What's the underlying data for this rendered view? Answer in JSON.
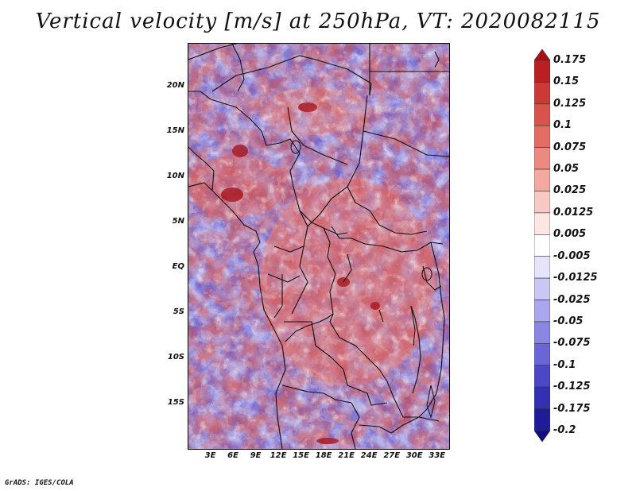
{
  "title": "Vertical velocity [m/s] at 250hPa, VT: 2020082115",
  "credit": "GrADS: IGES/COLA",
  "map": {
    "lat_labels": [
      "20N",
      "15N",
      "10N",
      "5N",
      "EQ",
      "5S",
      "10S",
      "15S"
    ],
    "lon_labels": [
      "3E",
      "6E",
      "9E",
      "12E",
      "15E",
      "18E",
      "21E",
      "24E",
      "27E",
      "30E",
      "33E"
    ],
    "lat_values": [
      20,
      15,
      10,
      5,
      0,
      -5,
      -10,
      -15
    ],
    "lon_values": [
      3,
      6,
      9,
      12,
      15,
      18,
      21,
      24,
      27,
      30,
      33
    ],
    "lon_range": [
      0,
      34.5
    ],
    "lat_range": [
      -20,
      24.7
    ]
  },
  "colorbar": {
    "labels": [
      "0.175",
      "0.15",
      "0.125",
      "0.1",
      "0.075",
      "0.05",
      "0.025",
      "0.0125",
      "0.005",
      "-0.005",
      "-0.0125",
      "-0.025",
      "-0.05",
      "-0.075",
      "-0.1",
      "-0.125",
      "-0.175",
      "-0.2"
    ],
    "colors": [
      "#a50f15",
      "#bb1e23",
      "#cb3a36",
      "#d9534c",
      "#e36d65",
      "#ec8a82",
      "#f3a8a0",
      "#f8c9c3",
      "#fce6e3",
      "#ffffff",
      "#e6e4fb",
      "#cac7f4",
      "#aaa7ec",
      "#8a86e2",
      "#6a66d6",
      "#4c47c7",
      "#3430b3",
      "#1f1c9a",
      "#120e80"
    ]
  }
}
